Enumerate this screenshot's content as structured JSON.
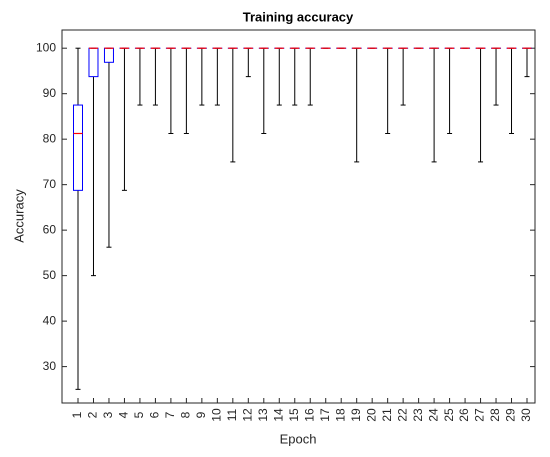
{
  "chart_data": {
    "type": "boxplot",
    "title": "Training accuracy",
    "x_label": "Epoch",
    "y_label": "Accuracy",
    "categories": [
      "1",
      "2",
      "3",
      "4",
      "5",
      "6",
      "7",
      "8",
      "9",
      "10",
      "11",
      "12",
      "13",
      "14",
      "15",
      "16",
      "17",
      "18",
      "19",
      "20",
      "21",
      "22",
      "23",
      "24",
      "25",
      "26",
      "27",
      "28",
      "29",
      "30"
    ],
    "min": [
      25,
      50,
      56.25,
      68.75,
      87.5,
      87.5,
      81.25,
      81.25,
      87.5,
      87.5,
      75,
      93.75,
      81.25,
      87.5,
      87.5,
      87.5,
      100,
      100,
      75,
      100,
      81.25,
      87.5,
      100,
      75,
      81.25,
      100,
      75,
      87.5,
      81.25,
      93.75
    ],
    "q1": [
      68.75,
      93.75,
      96.9,
      100,
      100,
      100,
      100,
      100,
      100,
      100,
      100,
      100,
      100,
      100,
      100,
      100,
      100,
      100,
      100,
      100,
      100,
      100,
      100,
      100,
      100,
      100,
      100,
      100,
      100,
      100
    ],
    "median": [
      81.25,
      100,
      100,
      100,
      100,
      100,
      100,
      100,
      100,
      100,
      100,
      100,
      100,
      100,
      100,
      100,
      100,
      100,
      100,
      100,
      100,
      100,
      100,
      100,
      100,
      100,
      100,
      100,
      100,
      100
    ],
    "q3": [
      87.5,
      100,
      100,
      100,
      100,
      100,
      100,
      100,
      100,
      100,
      100,
      100,
      100,
      100,
      100,
      100,
      100,
      100,
      100,
      100,
      100,
      100,
      100,
      100,
      100,
      100,
      100,
      100,
      100,
      100
    ],
    "max": [
      100,
      100,
      100,
      100,
      100,
      100,
      100,
      100,
      100,
      100,
      100,
      100,
      100,
      100,
      100,
      100,
      100,
      100,
      100,
      100,
      100,
      100,
      100,
      100,
      100,
      100,
      100,
      100,
      100,
      100
    ],
    "box_color": "#0000ff",
    "median_color": "#ff0000",
    "whisker_color": "#000000",
    "ylim": [
      22,
      104
    ],
    "yticks": [
      30,
      40,
      50,
      60,
      70,
      80,
      90,
      100
    ]
  }
}
